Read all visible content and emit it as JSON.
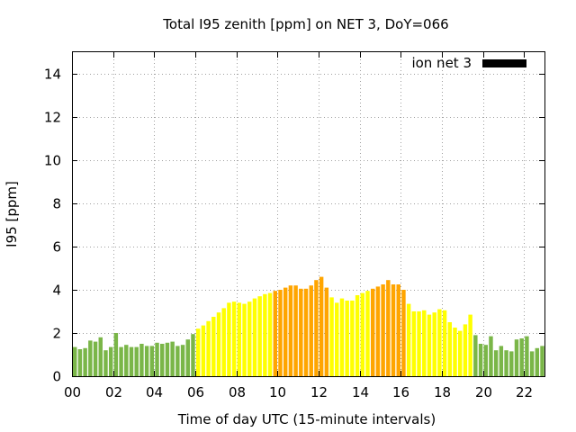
{
  "chart_data": {
    "type": "bar",
    "title": "Total I95 zenith [ppm] on NET 3, DoY=066",
    "xlabel": "Time of day UTC (15-minute intervals)",
    "ylabel": "I95 [ppm]",
    "xlim": [
      0,
      23
    ],
    "ylim": [
      0,
      15
    ],
    "x_tick_labels": [
      "00",
      "02",
      "04",
      "06",
      "08",
      "10",
      "12",
      "14",
      "16",
      "18",
      "20",
      "22"
    ],
    "y_ticks": [
      0,
      2,
      4,
      6,
      8,
      10,
      12,
      14
    ],
    "y_tick_labels": [
      "0",
      "2",
      "4",
      "6",
      "8",
      "10",
      "12",
      "14"
    ],
    "grid": true,
    "legend": {
      "label": "ion net 3",
      "position": "top-right",
      "color": "#000000"
    },
    "color_levels": {
      "low": "#7ab648",
      "medium": "#ffff00",
      "high": "#ffa500"
    },
    "x_interval_hours": 0.25,
    "x_start_hour": 0,
    "values": [
      1.35,
      1.25,
      1.3,
      1.65,
      1.6,
      1.8,
      1.2,
      1.35,
      2.0,
      1.35,
      1.45,
      1.35,
      1.35,
      1.5,
      1.4,
      1.4,
      1.55,
      1.5,
      1.55,
      1.6,
      1.4,
      1.45,
      1.7,
      1.95,
      2.2,
      2.35,
      2.55,
      2.75,
      2.95,
      3.15,
      3.4,
      3.45,
      3.4,
      3.35,
      3.45,
      3.6,
      3.7,
      3.8,
      3.85,
      3.95,
      4.0,
      4.1,
      4.2,
      4.2,
      4.05,
      4.05,
      4.2,
      4.45,
      4.6,
      4.1,
      3.65,
      3.4,
      3.6,
      3.5,
      3.5,
      3.75,
      3.85,
      3.95,
      4.05,
      4.15,
      4.25,
      4.45,
      4.25,
      4.25,
      4.0,
      3.35,
      3.0,
      3.0,
      3.05,
      2.85,
      2.95,
      3.1,
      3.05,
      2.5,
      2.25,
      2.1,
      2.4,
      2.85,
      1.9,
      1.5,
      1.45,
      1.85,
      1.2,
      1.4,
      1.2,
      1.15,
      1.7,
      1.75,
      1.85,
      1.15,
      1.3,
      1.4,
      1.85
    ],
    "levels": [
      "low",
      "low",
      "low",
      "low",
      "low",
      "low",
      "low",
      "low",
      "low",
      "low",
      "low",
      "low",
      "low",
      "low",
      "low",
      "low",
      "low",
      "low",
      "low",
      "low",
      "low",
      "low",
      "low",
      "low",
      "medium",
      "medium",
      "medium",
      "medium",
      "medium",
      "medium",
      "medium",
      "medium",
      "medium",
      "medium",
      "medium",
      "medium",
      "medium",
      "medium",
      "medium",
      "high",
      "high",
      "high",
      "high",
      "high",
      "high",
      "high",
      "high",
      "high",
      "high",
      "high",
      "medium",
      "medium",
      "medium",
      "medium",
      "medium",
      "medium",
      "medium",
      "medium",
      "high",
      "high",
      "high",
      "high",
      "high",
      "high",
      "high",
      "medium",
      "medium",
      "medium",
      "medium",
      "medium",
      "medium",
      "medium",
      "medium",
      "medium",
      "medium",
      "medium",
      "medium",
      "medium",
      "low",
      "low",
      "low",
      "low",
      "low",
      "low",
      "low",
      "low",
      "low",
      "low",
      "low",
      "low",
      "low",
      "low",
      "low"
    ]
  }
}
